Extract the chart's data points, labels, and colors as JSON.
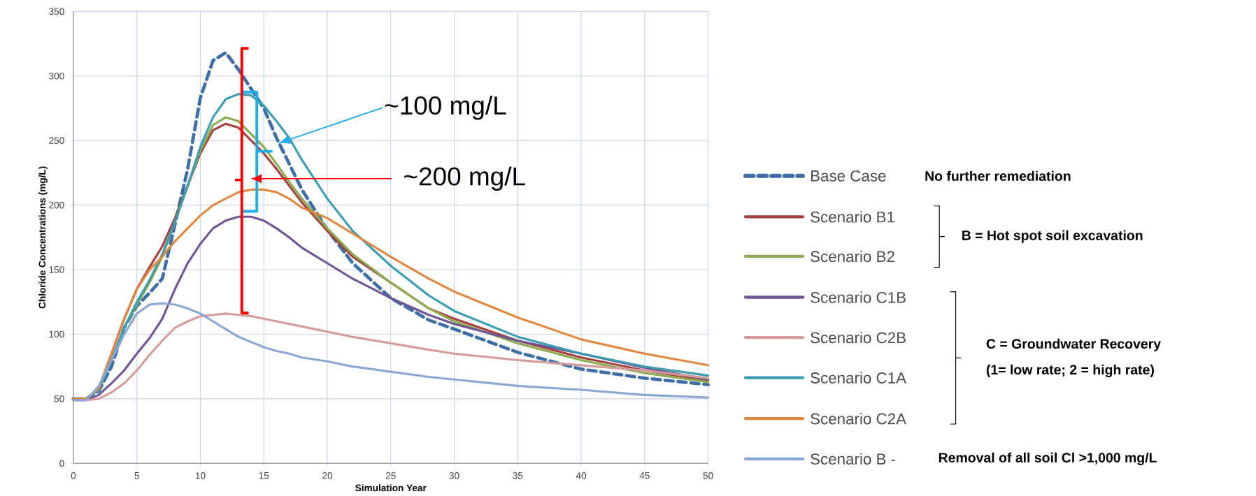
{
  "chart_data": {
    "type": "line",
    "xlabel": "Simulation Year",
    "ylabel": "Chloride Concentrations (mg/L)",
    "x": [
      0,
      1,
      2,
      3,
      4,
      5,
      6,
      7,
      8,
      9,
      10,
      11,
      12,
      13,
      14,
      15,
      16,
      17,
      18,
      20,
      22,
      25,
      28,
      30,
      35,
      40,
      45,
      50
    ],
    "xlim": [
      0,
      50
    ],
    "ylim": [
      0,
      350
    ],
    "xticks": [
      0,
      5,
      10,
      15,
      20,
      25,
      30,
      35,
      40,
      45,
      50
    ],
    "yticks": [
      0,
      50,
      100,
      150,
      200,
      250,
      300,
      350
    ],
    "grid": true,
    "legend": "right",
    "marker": "none",
    "series": [
      {
        "name": "Base Case",
        "color": "#3e6ea8",
        "line_style": "dashed",
        "values": [
          50,
          50,
          56,
          75,
          105,
          122,
          132,
          143,
          185,
          228,
          283,
          312,
          318,
          305,
          290,
          275,
          252,
          232,
          212,
          181,
          155,
          128,
          111,
          104,
          86,
          73,
          66,
          61
        ]
      },
      {
        "name": "Scenario B1",
        "color": "#a6403e",
        "values": [
          50,
          50,
          58,
          85,
          112,
          135,
          152,
          168,
          190,
          215,
          240,
          258,
          263,
          260,
          250,
          240,
          228,
          215,
          202,
          180,
          160,
          140,
          120,
          112,
          95,
          82,
          72,
          64
        ]
      },
      {
        "name": "Scenario B2",
        "color": "#8cac50",
        "values": [
          50,
          50,
          57,
          80,
          105,
          123,
          140,
          160,
          187,
          215,
          242,
          262,
          268,
          265,
          255,
          245,
          232,
          218,
          205,
          182,
          162,
          140,
          120,
          110,
          93,
          80,
          70,
          63
        ]
      },
      {
        "name": "Scenario C1B",
        "color": "#6f5596",
        "values": [
          49,
          49,
          53,
          62,
          72,
          85,
          97,
          112,
          135,
          155,
          170,
          182,
          188,
          191,
          191,
          188,
          182,
          175,
          167,
          155,
          143,
          128,
          115,
          108,
          95,
          85,
          74,
          65
        ]
      },
      {
        "name": "Scenario C2B",
        "color": "#d49b9a",
        "values": [
          49,
          49,
          50,
          55,
          62,
          72,
          84,
          95,
          105,
          110,
          114,
          115,
          116,
          115,
          114,
          112,
          110,
          108,
          106,
          102,
          98,
          93,
          88,
          85,
          80,
          76,
          72,
          66
        ]
      },
      {
        "name": "Scenario C1A",
        "color": "#3a9db2",
        "values": [
          50,
          50,
          57,
          80,
          105,
          125,
          142,
          162,
          187,
          215,
          245,
          268,
          282,
          286,
          285,
          277,
          265,
          252,
          235,
          205,
          180,
          153,
          130,
          118,
          98,
          85,
          75,
          68
        ]
      },
      {
        "name": "Scenario C2A",
        "color": "#e0883f",
        "values": [
          50,
          50,
          58,
          85,
          112,
          135,
          150,
          160,
          172,
          182,
          192,
          200,
          205,
          210,
          212,
          212,
          210,
          205,
          198,
          190,
          178,
          160,
          143,
          133,
          113,
          96,
          85,
          76
        ]
      },
      {
        "name": "Scenario B -",
        "color": "#8aa6d2",
        "values": [
          49,
          49,
          60,
          80,
          100,
          116,
          123,
          124,
          123,
          120,
          116,
          110,
          104,
          98,
          94,
          90,
          87,
          85,
          82,
          79,
          75,
          71,
          67,
          65,
          60,
          57,
          53,
          51
        ]
      }
    ],
    "annotations": [
      {
        "text": "~100 mg/L",
        "x": 16.2,
        "y": 248
      },
      "~200 mg/L",
      "No further remediation",
      "B = Hot spot soil excavation",
      "C = Groundwater Recovery",
      "(1= low rate; 2 = high rate)",
      "Removal of all soil Cl >1,000 mg/L"
    ]
  }
}
